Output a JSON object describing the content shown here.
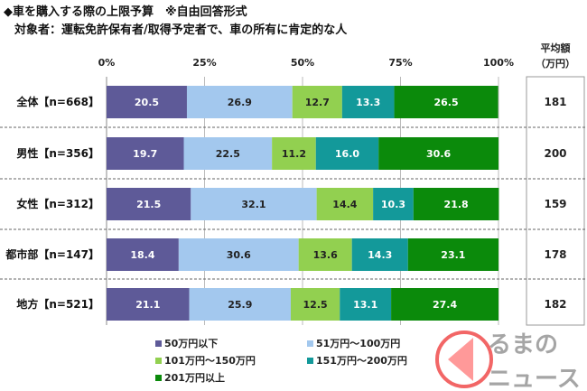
{
  "title": "◆車を購入する際の上限予算　※自由回答形式",
  "subtitle": "対象者：運転免許保有者/取得予定者で、車の所有に肯定的な人",
  "chart_data": {
    "type": "bar",
    "orientation": "horizontal-stacked-100",
    "xticks": [
      "0%",
      "25%",
      "50%",
      "75%",
      "100%"
    ],
    "xlim": [
      0,
      100
    ],
    "categories": [
      "全体【n=668】",
      "男性【n=356】",
      "女性【n=312】",
      "都市部【n=147】",
      "地方【n=521】"
    ],
    "series": [
      {
        "name": "50万円以下",
        "color": "#5e5a98",
        "values": [
          20.5,
          19.7,
          21.5,
          18.4,
          21.1
        ]
      },
      {
        "name": "51万円～100万円",
        "color": "#a3c8ee",
        "values": [
          26.9,
          22.5,
          32.1,
          30.6,
          25.9
        ]
      },
      {
        "name": "101万円～150万円",
        "color": "#92d050",
        "values": [
          12.7,
          11.2,
          14.4,
          13.6,
          12.5
        ]
      },
      {
        "name": "151万円～200万円",
        "color": "#13999a",
        "values": [
          13.3,
          16.0,
          10.3,
          14.3,
          13.1
        ]
      },
      {
        "name": "201万円以上",
        "color": "#0b8a0b",
        "values": [
          26.5,
          30.6,
          21.8,
          23.1,
          27.4
        ]
      }
    ],
    "avg_header": [
      "平均額",
      "（万円）"
    ],
    "averages": [
      181,
      200,
      159,
      178,
      182
    ],
    "legend_position": "bottom"
  },
  "watermark": {
    "line1": "るまの",
    "line2": "ニュース"
  }
}
